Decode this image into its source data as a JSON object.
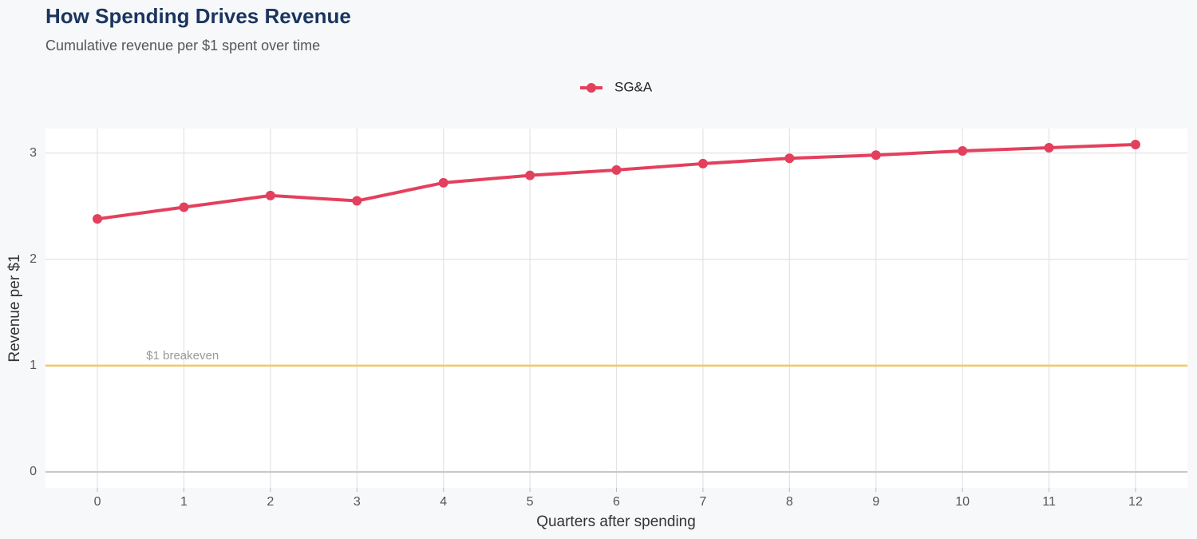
{
  "chart_data": {
    "type": "line",
    "title": "How Spending Drives Revenue",
    "subtitle": "Cumulative revenue per $1 spent over time",
    "x_label": "Quarters after spending",
    "y_label": "Revenue per $1",
    "x": [
      0,
      1,
      2,
      3,
      4,
      5,
      6,
      7,
      8,
      9,
      10,
      11,
      12
    ],
    "series": [
      {
        "name": "SG&A",
        "color": "#e3405d",
        "values": [
          2.38,
          2.49,
          2.6,
          2.55,
          2.72,
          2.79,
          2.84,
          2.9,
          2.95,
          2.98,
          3.02,
          3.05,
          3.08
        ]
      }
    ],
    "xlim": [
      -0.6,
      12.6
    ],
    "xticks": [
      0,
      1,
      2,
      3,
      4,
      5,
      6,
      7,
      8,
      9,
      10,
      11,
      12
    ],
    "ylim": [
      -0.15,
      3.23
    ],
    "yticks": [
      0,
      1,
      2,
      3
    ],
    "reference_line": {
      "value": 1,
      "label": "$1 breakeven",
      "color": "#f3c85e"
    },
    "grid": true,
    "legend": "top"
  }
}
